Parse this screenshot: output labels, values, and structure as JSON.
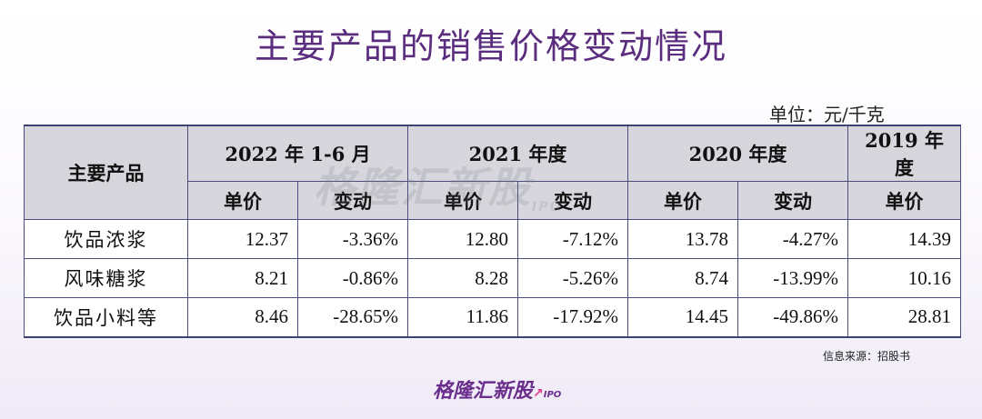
{
  "title": "主要产品的销售价格变动情况",
  "unit": "单位：元/千克",
  "table": {
    "product_header": "主要产品",
    "periods": [
      "2022 年 1-6 月",
      "2021 年度",
      "2020 年度",
      "2019 年度"
    ],
    "sub_price": "单价",
    "sub_change": "变动",
    "rows": [
      {
        "product": "饮品浓浆",
        "p2022": "12.37",
        "c2022": "-3.36%",
        "p2021": "12.80",
        "c2021": "-7.12%",
        "p2020": "13.78",
        "c2020": "-4.27%",
        "p2019": "14.39"
      },
      {
        "product": "风味糖浆",
        "p2022": "8.21",
        "c2022": "-0.86%",
        "p2021": "8.28",
        "c2021": "-5.26%",
        "p2020": "8.74",
        "c2020": "-13.99%",
        "p2019": "10.16"
      },
      {
        "product": "饮品小料等",
        "p2022": "8.46",
        "c2022": "-28.65%",
        "p2021": "11.86",
        "c2021": "-17.92%",
        "p2020": "14.45",
        "c2020": "-49.86%",
        "p2019": "28.81"
      }
    ]
  },
  "watermark": {
    "text": "格隆汇新股",
    "suffix": "IPO"
  },
  "source": "信息来源：招股书",
  "logo": {
    "text": "格隆汇新股",
    "suffix": "IPO"
  }
}
